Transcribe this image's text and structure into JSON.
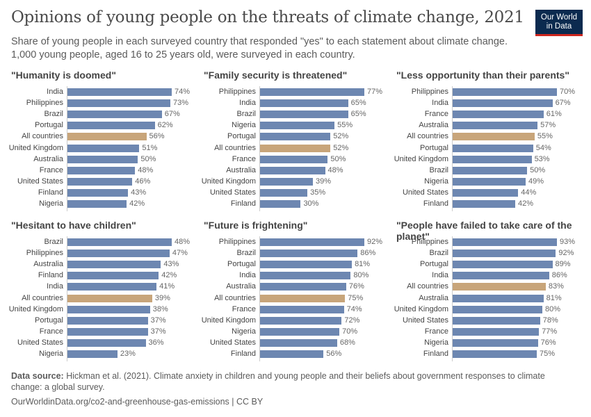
{
  "header": {
    "title": "Opinions of young people on the threats of climate change, 2021",
    "subtitle_1": "Share of young people in each surveyed country that responded \"yes\" to each statement about climate change.",
    "subtitle_2": "1,000 young people, aged 16 to 25 years old, were surveyed in each country.",
    "logo_line1": "Our World",
    "logo_line2": "in Data"
  },
  "colors": {
    "bar": "#6d87b1",
    "highlight": "#c8a57a",
    "logo": "#0b2a4f"
  },
  "footer": {
    "source_label": "Data source:",
    "source_text": "Hickman et al. (2021). Climate anxiety in children and young people and their beliefs about government responses to climate",
    "source_text_2": "change: a global survey.",
    "url": "OurWorldinData.org/co2-and-greenhouse-gas-emissions | CC BY"
  },
  "chart_data": [
    {
      "type": "bar",
      "title": "\"Humanity is doomed\"",
      "unit": "%",
      "highlight": "All countries",
      "categories": [
        "India",
        "Philippines",
        "Brazil",
        "Portugal",
        "All countries",
        "United Kingdom",
        "Australia",
        "France",
        "United States",
        "Finland",
        "Nigeria"
      ],
      "values": [
        74,
        73,
        67,
        62,
        56,
        51,
        50,
        48,
        46,
        43,
        42
      ]
    },
    {
      "type": "bar",
      "title": "\"Family security is threatened\"",
      "unit": "%",
      "highlight": "All countries",
      "categories": [
        "Philippines",
        "India",
        "Brazil",
        "Nigeria",
        "Portugal",
        "All countries",
        "France",
        "Australia",
        "United Kingdom",
        "United States",
        "Finland"
      ],
      "values": [
        77,
        65,
        65,
        55,
        52,
        52,
        50,
        48,
        39,
        35,
        30
      ]
    },
    {
      "type": "bar",
      "title": "\"Less opportunity than their parents\"",
      "unit": "%",
      "highlight": "All countries",
      "categories": [
        "Philippines",
        "India",
        "France",
        "Australia",
        "All countries",
        "Portugal",
        "United Kingdom",
        "Brazil",
        "Nigeria",
        "United States",
        "Finland"
      ],
      "values": [
        70,
        67,
        61,
        57,
        55,
        54,
        53,
        50,
        49,
        44,
        42
      ]
    },
    {
      "type": "bar",
      "title": "\"Hesitant to have children\"",
      "unit": "%",
      "highlight": "All countries",
      "categories": [
        "Brazil",
        "Philippines",
        "Australia",
        "Finland",
        "India",
        "All countries",
        "United Kingdom",
        "Portugal",
        "France",
        "United States",
        "Nigeria"
      ],
      "values": [
        48,
        47,
        43,
        42,
        41,
        39,
        38,
        37,
        37,
        36,
        23
      ]
    },
    {
      "type": "bar",
      "title": "\"Future is frightening\"",
      "unit": "%",
      "highlight": "All countries",
      "categories": [
        "Philippines",
        "Brazil",
        "Portugal",
        "India",
        "Australia",
        "All countries",
        "France",
        "United Kingdom",
        "Nigeria",
        "United States",
        "Finland"
      ],
      "values": [
        92,
        86,
        81,
        80,
        76,
        75,
        74,
        72,
        70,
        68,
        56
      ]
    },
    {
      "type": "bar",
      "title": "\"People have failed to take care of the planet\"",
      "unit": "%",
      "highlight": "All countries",
      "categories": [
        "Philippines",
        "Brazil",
        "Portugal",
        "India",
        "All countries",
        "Australia",
        "United Kingdom",
        "United States",
        "France",
        "Nigeria",
        "Finland"
      ],
      "values": [
        93,
        92,
        89,
        86,
        83,
        81,
        80,
        78,
        77,
        76,
        75
      ]
    }
  ]
}
